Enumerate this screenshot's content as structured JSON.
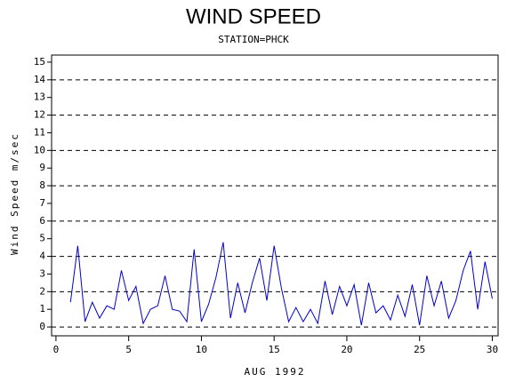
{
  "chart_data": {
    "type": "line",
    "title": "WIND SPEED",
    "subtitle": "STATION=PHCK",
    "x_label": "AUG 1992",
    "y_label": "Wind Speed m/sec",
    "x": [
      1.0,
      1.5,
      2.0,
      2.5,
      3.0,
      3.5,
      4.0,
      4.5,
      5.0,
      5.5,
      6.0,
      6.5,
      7.0,
      7.5,
      8.0,
      8.5,
      9.0,
      9.5,
      10.0,
      10.5,
      11.0,
      11.5,
      12.0,
      12.5,
      13.0,
      13.5,
      14.0,
      14.5,
      15.0,
      15.5,
      16.0,
      16.5,
      17.0,
      17.5,
      18.0,
      18.5,
      19.0,
      19.5,
      20.0,
      20.5,
      21.0,
      21.5,
      22.0,
      22.5,
      23.0,
      23.5,
      24.0,
      24.5,
      25.0,
      25.5,
      26.0,
      26.5,
      27.0,
      27.5,
      28.0,
      28.5,
      29.0,
      29.5,
      30.0
    ],
    "series": [
      {
        "name": "Wind Speed",
        "color": "#0000cc",
        "values": [
          1.4,
          4.6,
          0.3,
          1.4,
          0.5,
          1.2,
          1.0,
          3.2,
          1.5,
          2.3,
          0.2,
          1.0,
          1.2,
          2.9,
          1.0,
          0.9,
          0.3,
          4.4,
          0.3,
          1.3,
          2.8,
          4.8,
          0.5,
          2.5,
          0.8,
          2.5,
          3.9,
          1.5,
          4.6,
          2.2,
          0.3,
          1.1,
          0.3,
          1.0,
          0.2,
          2.6,
          0.7,
          2.3,
          1.2,
          2.4,
          0.1,
          2.5,
          0.8,
          1.2,
          0.4,
          1.8,
          0.6,
          2.4,
          0.1,
          2.9,
          1.2,
          2.6,
          0.5,
          1.5,
          3.2,
          4.3,
          1.0,
          3.7,
          1.6
        ]
      }
    ],
    "xlim": [
      -0.3,
      30.4
    ],
    "xticks": [
      0,
      5,
      10,
      15,
      20,
      25,
      30
    ],
    "ylim": [
      -0.5,
      15.4
    ],
    "yticks": [
      0,
      1,
      2,
      3,
      4,
      5,
      6,
      7,
      8,
      9,
      10,
      11,
      12,
      13,
      14,
      15
    ],
    "ygrid": [
      0,
      2,
      4,
      6,
      8,
      10,
      12,
      14
    ],
    "grid_style": "dashed"
  }
}
